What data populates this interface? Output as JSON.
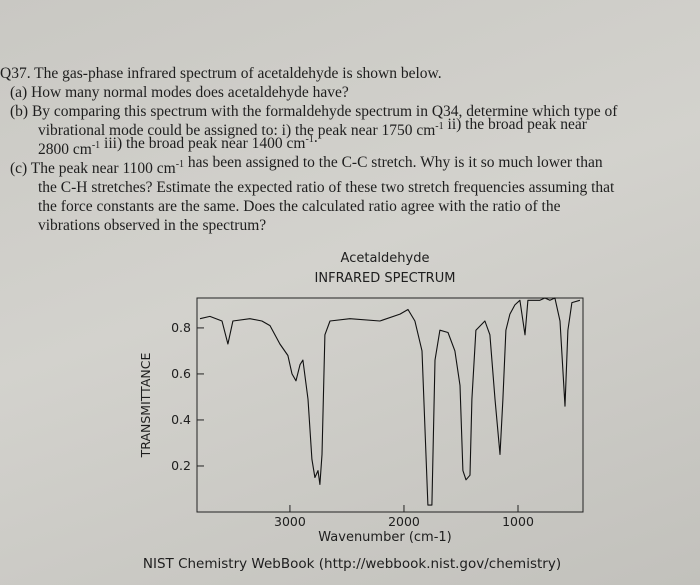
{
  "question": {
    "lines": [
      [
        {
          "text": "Q37. The gas-phase infrared spectrum of acetaldehyde is shown below."
        }
      ],
      [
        {
          "text": "(a) How many normal modes does acetaldehyde have?"
        }
      ],
      [
        {
          "text": "(b) By comparing this spectrum with the formaldehyde spectrum in Q34, determine which type of"
        }
      ],
      [
        {
          "text": "vibrational mode could be assigned to: i) the peak near 1750 cm"
        },
        {
          "sup": "-1"
        },
        {
          "text": " ii) the broad peak near"
        }
      ],
      [
        {
          "text": "2800 cm"
        },
        {
          "sup": "-1"
        },
        {
          "text": " iii) the broad peak near 1400 cm"
        },
        {
          "sup": "-1"
        },
        {
          "text": "."
        }
      ],
      [
        {
          "text": "(c) The peak near 1100 cm"
        },
        {
          "sup": "-1"
        },
        {
          "text": " has been assigned to the C-C stretch. Why is it so much lower than"
        }
      ],
      [
        {
          "text": "the C-H stretches? Estimate the expected ratio of these two stretch frequencies assuming that"
        }
      ],
      [
        {
          "text": "the force constants are the same. Does the calculated ratio agree with the ratio of the"
        }
      ],
      [
        {
          "text": "vibrations observed in the spectrum?"
        }
      ]
    ]
  },
  "chart_data": {
    "type": "line",
    "title": "Acetaldehyde",
    "subtitle": "INFRARED SPECTRUM",
    "x_label": "Wavenumber (cm-1)",
    "y_label": "TRANSMITTANCE",
    "source": "NIST Chemistry WebBook (http://webbook.nist.gov/chemistry)",
    "color": "#111111",
    "x": [
      3789,
      3702,
      3596,
      3544,
      3500,
      3351,
      3246,
      3175,
      3088,
      3018,
      2982,
      2947,
      2912,
      2886,
      2842,
      2807,
      2781,
      2754,
      2737,
      2719,
      2693,
      2649,
      2474,
      2211,
      2035,
      1965,
      1904,
      1842,
      1790,
      1755,
      1728,
      1685,
      1614,
      1553,
      1509,
      1483,
      1456,
      1421,
      1404,
      1369,
      1290,
      1246,
      1202,
      1158,
      1132,
      1106,
      1071,
      1027,
      983,
      939,
      913,
      851,
      808,
      764,
      720,
      676,
      632,
      588,
      562,
      527,
      457
    ],
    "values": [
      0.84,
      0.85,
      0.83,
      0.73,
      0.83,
      0.84,
      0.83,
      0.81,
      0.73,
      0.68,
      0.6,
      0.57,
      0.64,
      0.66,
      0.49,
      0.23,
      0.15,
      0.18,
      0.12,
      0.25,
      0.77,
      0.83,
      0.84,
      0.83,
      0.86,
      0.88,
      0.83,
      0.7,
      0.03,
      0.03,
      0.66,
      0.79,
      0.78,
      0.7,
      0.55,
      0.18,
      0.14,
      0.16,
      0.49,
      0.79,
      0.83,
      0.77,
      0.49,
      0.25,
      0.49,
      0.79,
      0.86,
      0.9,
      0.92,
      0.77,
      0.92,
      0.92,
      0.92,
      0.93,
      0.92,
      0.93,
      0.83,
      0.46,
      0.79,
      0.91,
      0.92
    ],
    "xlim": [
      3815,
      430
    ],
    "ylim": [
      0,
      0.93
    ],
    "xticks": [
      3000,
      2000,
      1000
    ],
    "yticks": [
      0.8,
      0.6,
      0.4,
      0.2
    ]
  }
}
